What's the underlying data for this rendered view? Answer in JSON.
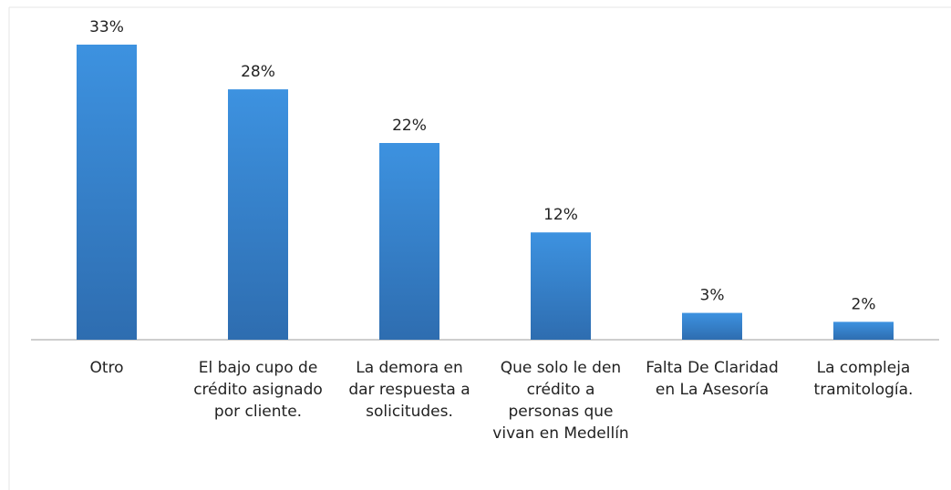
{
  "chart_data": {
    "type": "bar",
    "categories": [
      "Otro",
      "El bajo cupo de crédito asignado por cliente.",
      "La demora en dar respuesta a solicitudes.",
      "Que solo le den crédito a personas que vivan en Medellín",
      "Falta De Claridad en La Asesoría",
      "La compleja tramitología."
    ],
    "values": [
      33,
      28,
      22,
      12,
      3,
      2
    ],
    "value_labels": [
      "33%",
      "28%",
      "22%",
      "12%",
      "3%",
      "2%"
    ],
    "color": "#3a8edb"
  }
}
